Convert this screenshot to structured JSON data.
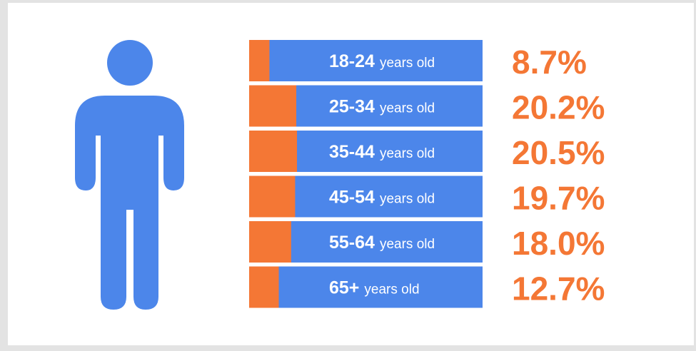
{
  "chart_data": {
    "type": "bar",
    "categories": [
      "18-24",
      "25-34",
      "35-44",
      "45-54",
      "55-64",
      "65+"
    ],
    "unit_suffix": "years old",
    "values": [
      8.7,
      20.2,
      20.5,
      19.7,
      18.0,
      12.7
    ],
    "value_labels": [
      "8.7%",
      "20.2%",
      "20.5%",
      "19.7%",
      "18.0%",
      "12.7%"
    ],
    "xlim": [
      0,
      100
    ],
    "title": "",
    "xlabel": "",
    "ylabel": "",
    "grid": false,
    "legend": "none"
  },
  "colors": {
    "bar_fill": "#f47735",
    "bar_track": "#4c86ea",
    "value_text": "#f47735",
    "label_text": "#ffffff",
    "person": "#4c86ea",
    "background": "#ffffff"
  },
  "illustration": {
    "icon": "person-icon"
  }
}
